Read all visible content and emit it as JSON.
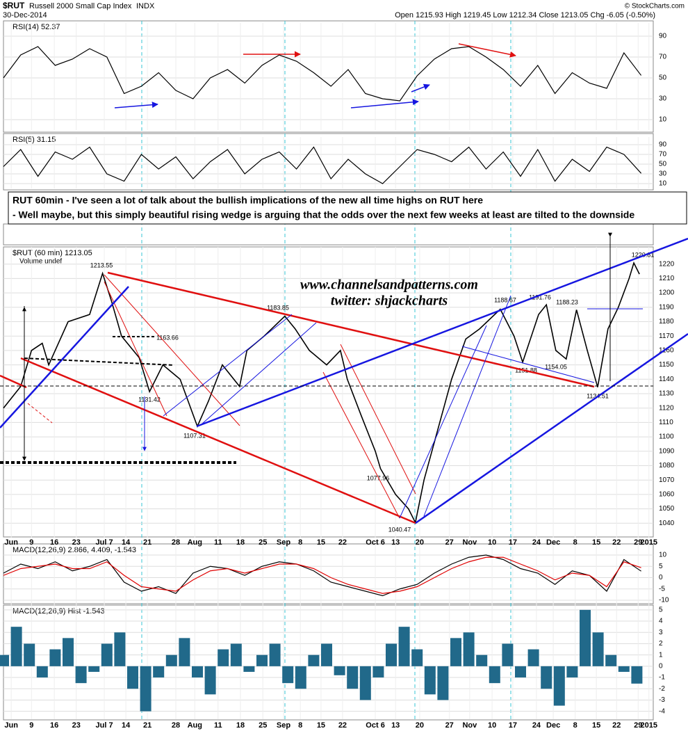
{
  "header": {
    "symbol": "$RUT",
    "name": "Russell 2000 Small Cap Index",
    "exchange": "INDX",
    "date": "30-Dec-2014",
    "quote": "Open 1215.93 High 1219.45 Low 1212.34 Close 1213.05 Chg -6.05 (-0.50%)",
    "credit": "© StockCharts.com"
  },
  "annotation": [
    "RUT 60min - I've seen a lot of talk about the bullish implications of the new all time highs on RUT here",
    "- Well maybe, but this simply beautiful rising wedge is arguing that the odds over the next few weeks at least  are tilted to the downside"
  ],
  "watermark": [
    "www.channelsandpatterns.com",
    "twitter: shjackcharts"
  ],
  "chart_data": [
    {
      "type": "line",
      "title": "RSI(14) 52.37",
      "x": [
        0,
        4,
        8,
        12,
        16,
        20,
        24,
        28,
        32,
        36,
        40,
        44,
        48,
        52,
        56,
        60,
        64,
        68,
        72,
        76,
        80,
        84,
        88,
        92,
        96,
        100,
        104,
        108,
        112,
        116,
        120,
        124,
        128,
        132,
        136,
        140,
        144,
        148
      ],
      "series": [
        {
          "name": "RSI(14)",
          "color": "#000000",
          "values": [
            50,
            72,
            80,
            62,
            68,
            78,
            70,
            35,
            42,
            55,
            38,
            30,
            50,
            58,
            45,
            62,
            72,
            66,
            55,
            42,
            58,
            35,
            30,
            28,
            52,
            68,
            78,
            80,
            70,
            58,
            42,
            62,
            35,
            55,
            45,
            40,
            74,
            52.37
          ]
        }
      ],
      "ylim": [
        0,
        100
      ],
      "yticks": [
        10,
        30,
        50,
        70,
        90
      ],
      "grid": true
    },
    {
      "type": "line",
      "title": "RSI(5) 31.15",
      "x": [
        0,
        4,
        8,
        12,
        16,
        20,
        24,
        28,
        32,
        36,
        40,
        44,
        48,
        52,
        56,
        60,
        64,
        68,
        72,
        76,
        80,
        84,
        88,
        92,
        96,
        100,
        104,
        108,
        112,
        116,
        120,
        124,
        128,
        132,
        136,
        140,
        144,
        148
      ],
      "series": [
        {
          "name": "RSI(5)",
          "color": "#000000",
          "values": [
            45,
            80,
            25,
            75,
            60,
            85,
            30,
            15,
            70,
            40,
            65,
            20,
            55,
            80,
            30,
            60,
            75,
            40,
            85,
            20,
            60,
            30,
            10,
            45,
            80,
            70,
            55,
            85,
            40,
            75,
            25,
            80,
            15,
            60,
            35,
            85,
            70,
            31.15
          ]
        }
      ],
      "ylim": [
        0,
        100
      ],
      "yticks": [
        10,
        30,
        50,
        70,
        90
      ],
      "grid": true
    },
    {
      "type": "line",
      "title": "$RUT (60 min) 1213.05",
      "subtitle": "Volume undef",
      "x": [
        0,
        4,
        6.5,
        9,
        10.5,
        15,
        20,
        23,
        25,
        27.4,
        31.5,
        33.9,
        37,
        41,
        45,
        47.6,
        50.8,
        54.8,
        56.5,
        60.5,
        65.3,
        67.7,
        71,
        75,
        78.2,
        79.8,
        83,
        86.3,
        87.5,
        91,
        94,
        95.6,
        97.6,
        100.8,
        104,
        107.3,
        110.5,
        115.3,
        118.5,
        120.5,
        124.2,
        126,
        128.2,
        130.6,
        133,
        135.5,
        137.9,
        140.3,
        142.7,
        145.2,
        146.3,
        147.6
      ],
      "series": [
        {
          "name": "$RUT",
          "color": "#000000",
          "values": [
            1120,
            1135,
            1160,
            1165,
            1150,
            1180,
            1185,
            1213.55,
            1195,
            1170,
            1155,
            1131.42,
            1150,
            1140,
            1107.31,
            1125,
            1150,
            1135,
            1160,
            1170,
            1183.85,
            1175,
            1160,
            1150,
            1160,
            1140,
            1115,
            1090,
            1077.96,
            1060,
            1050,
            1040.47,
            1070,
            1105,
            1140,
            1168,
            1175,
            1188.67,
            1170,
            1151.88,
            1185,
            1191.76,
            1160,
            1154.05,
            1188.23,
            1160,
            1134.51,
            1175,
            1190,
            1210,
            1220.81,
            1213.05
          ]
        }
      ],
      "xlim": [
        0,
        150
      ],
      "xticks": [
        {
          "value": 1.8,
          "label": "Jun"
        },
        {
          "value": 6.5,
          "label": "9"
        },
        {
          "value": 11.8,
          "label": "16"
        },
        {
          "value": 16.9,
          "label": "23"
        },
        {
          "value": 23.4,
          "label": "Jul 7"
        },
        {
          "value": 28.4,
          "label": "14"
        },
        {
          "value": 33.4,
          "label": "21"
        },
        {
          "value": 40,
          "label": "28"
        },
        {
          "value": 44.4,
          "label": "Aug"
        },
        {
          "value": 49.8,
          "label": "11"
        },
        {
          "value": 55,
          "label": "18"
        },
        {
          "value": 60.2,
          "label": "25"
        },
        {
          "value": 65,
          "label": "Sep"
        },
        {
          "value": 68.9,
          "label": "8"
        },
        {
          "value": 73.7,
          "label": "15"
        },
        {
          "value": 78.7,
          "label": "22"
        },
        {
          "value": 86.3,
          "label": "Oct 6"
        },
        {
          "value": 91,
          "label": "13"
        },
        {
          "value": 96.6,
          "label": "20"
        },
        {
          "value": 103.5,
          "label": "27"
        },
        {
          "value": 108.2,
          "label": "Nov"
        },
        {
          "value": 113.4,
          "label": "10"
        },
        {
          "value": 118.2,
          "label": "17"
        },
        {
          "value": 123.7,
          "label": "24"
        },
        {
          "value": 127.6,
          "label": "Dec"
        },
        {
          "value": 132.7,
          "label": "8"
        },
        {
          "value": 137.6,
          "label": "15"
        },
        {
          "value": 142.3,
          "label": "22"
        },
        {
          "value": 147.3,
          "label": "29"
        },
        {
          "value": 149.8,
          "label": "2015"
        }
      ],
      "ylim": [
        1030,
        1230
      ],
      "yticks": [
        1040,
        1050,
        1060,
        1070,
        1080,
        1090,
        1100,
        1110,
        1120,
        1130,
        1140,
        1150,
        1160,
        1170,
        1180,
        1190,
        1200,
        1210,
        1220
      ],
      "grid": true,
      "annotations": [
        "1213.55",
        "1163.66",
        "1131.42",
        "1107.31",
        "1183.85",
        "1077.96",
        "1040.47",
        "1188.67",
        "1191.76",
        "1188.23",
        "1151.88",
        "1154.05",
        "1134.51",
        "1220.81"
      ]
    },
    {
      "type": "line",
      "title": "MACD(12,26,9) 2.866, 4.409, -1.543",
      "x": [
        0,
        4,
        8,
        12,
        16,
        20,
        24,
        28,
        32,
        36,
        40,
        44,
        48,
        52,
        56,
        60,
        64,
        68,
        72,
        76,
        80,
        84,
        88,
        92,
        96,
        100,
        104,
        108,
        112,
        116,
        120,
        124,
        128,
        132,
        136,
        140,
        144,
        148
      ],
      "series": [
        {
          "name": "MACD",
          "color": "#000000",
          "values": [
            2,
            6,
            4,
            7,
            3,
            5,
            8,
            -2,
            -6,
            -4,
            -7,
            2,
            5,
            4,
            1,
            5,
            7,
            6,
            3,
            -2,
            -4,
            -6,
            -8,
            -5,
            -3,
            2,
            6,
            9,
            10,
            8,
            4,
            2,
            -3,
            3,
            1,
            -6,
            8,
            2.866
          ]
        },
        {
          "name": "Signal",
          "color": "#e00000",
          "values": [
            1,
            4,
            5,
            6,
            4,
            4,
            7,
            1,
            -4,
            -5,
            -6,
            -1,
            3,
            4,
            2,
            4,
            6,
            6,
            4,
            0,
            -3,
            -5,
            -7,
            -6,
            -4,
            0,
            4,
            7,
            9,
            9,
            6,
            3,
            -1,
            2,
            1,
            -4,
            7,
            4.409
          ]
        }
      ],
      "ylim": [
        -12,
        14
      ],
      "yticks": [
        -10,
        -5,
        0,
        5,
        10
      ],
      "grid": true
    },
    {
      "type": "bar",
      "title": "MACD(12,26,9) Hist -1.543",
      "x": [
        0,
        3,
        6,
        9,
        12,
        15,
        18,
        21,
        24,
        27,
        30,
        33,
        36,
        39,
        42,
        45,
        48,
        51,
        54,
        57,
        60,
        63,
        66,
        69,
        72,
        75,
        78,
        81,
        84,
        87,
        90,
        93,
        96,
        99,
        102,
        105,
        108,
        111,
        114,
        117,
        120,
        123,
        126,
        129,
        132,
        135,
        138,
        141,
        144,
        147
      ],
      "values": [
        1,
        3.5,
        2,
        -1,
        1.5,
        2.5,
        -1.5,
        -0.5,
        2,
        3,
        -2,
        -4,
        -1,
        1,
        2.5,
        -1,
        -2.5,
        1.5,
        2,
        -0.5,
        1,
        2,
        -1.5,
        -2,
        1,
        2,
        -0.8,
        -2,
        -3,
        -1,
        2,
        3.5,
        1.5,
        -2.5,
        -3,
        2.5,
        3,
        1,
        -1.5,
        2,
        -1,
        1.5,
        -2,
        -3.5,
        -1,
        5,
        3,
        1,
        -0.5,
        -1.543
      ],
      "color": "#21698a",
      "ylim": [
        -4.7,
        5.3
      ],
      "yticks": [
        -4,
        -3,
        -2,
        -1,
        0,
        1,
        2,
        3,
        4,
        5
      ],
      "grid": true
    }
  ]
}
